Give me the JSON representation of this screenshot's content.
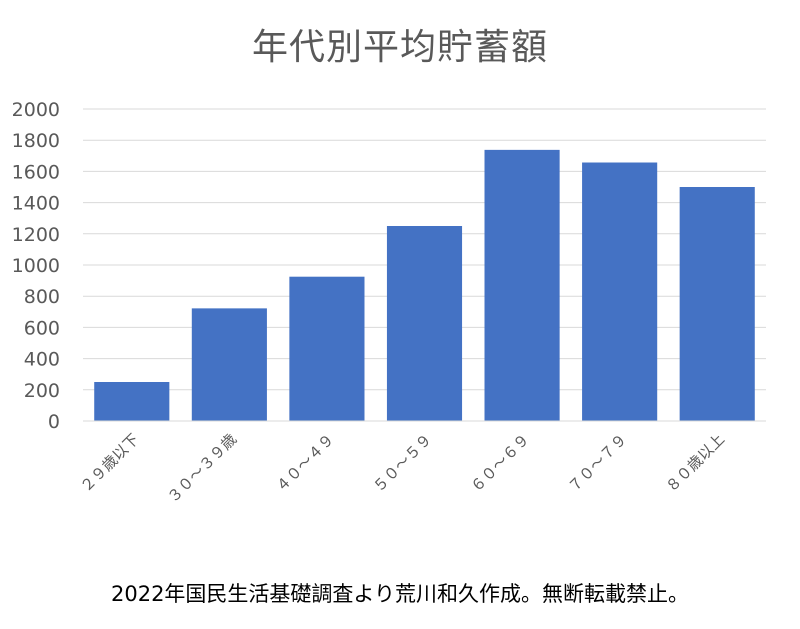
{
  "chart_data": {
    "type": "bar",
    "title": "年代別平均貯蓄額",
    "categories": [
      "２９歳以下",
      "３０～３９歳",
      "４０～４９",
      "５０～５９",
      "６０～６９",
      "７０～７９",
      "８０歳以上"
    ],
    "values": [
      250,
      722,
      925,
      1250,
      1738,
      1657,
      1500
    ],
    "xlabel": "",
    "ylabel": "",
    "ylim": [
      0,
      2000
    ],
    "yticks": [
      0,
      200,
      400,
      600,
      800,
      1000,
      1200,
      1400,
      1600,
      1800,
      2000
    ],
    "grid": true,
    "legend": "none",
    "bar_color": "#4472C4",
    "grid_color": "#D9D9D9",
    "tick_label_color": "#595959"
  },
  "caption": "2022年国民生活基礎調査より荒川和久作成。無断転載禁止。"
}
